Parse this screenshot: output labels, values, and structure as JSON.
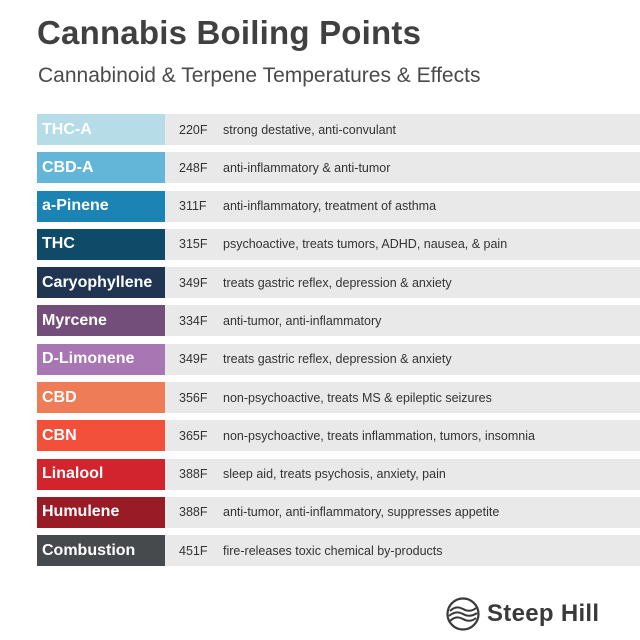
{
  "header": {
    "title": "Cannabis Boiling Points",
    "subtitle": "Cannabinoid & Terpene Temperatures & Effects"
  },
  "rows": [
    {
      "name": "THC-A",
      "temp": "220F",
      "effect": "strong destative, anti-convulant",
      "color": "#b5dce7"
    },
    {
      "name": "CBD-A",
      "temp": "248F",
      "effect": "anti-inflammatory & anti-tumor",
      "color": "#63b6d8"
    },
    {
      "name": "a-Pinene",
      "temp": "311F",
      "effect": "anti-inflammatory, treatment of asthma",
      "color": "#1b84b5"
    },
    {
      "name": "THC",
      "temp": "315F",
      "effect": "psychoactive, treats tumors, ADHD, nausea, & pain",
      "color": "#0f4a68"
    },
    {
      "name": "Caryophyllene",
      "temp": "349F",
      "effect": "treats gastric reflex, depression & anxiety",
      "color": "#1f3552"
    },
    {
      "name": "Myrcene",
      "temp": "334F",
      "effect": "anti-tumor, anti-inflammatory",
      "color": "#744e7b"
    },
    {
      "name": "D-Limonene",
      "temp": "349F",
      "effect": "treats gastric reflex, depression & anxiety",
      "color": "#a776b3"
    },
    {
      "name": "CBD",
      "temp": "356F",
      "effect": "non-psychoactive, treats MS & epileptic seizures",
      "color": "#ee7c56"
    },
    {
      "name": "CBN",
      "temp": "365F",
      "effect": "non-psychoactive, treats inflammation, tumors, insomnia",
      "color": "#f2503b"
    },
    {
      "name": "Linalool",
      "temp": "388F",
      "effect": "sleep aid, treats psychosis, anxiety, pain",
      "color": "#d1242d"
    },
    {
      "name": "Humulene",
      "temp": "388F",
      "effect": "anti-tumor, anti-inflammatory, suppresses appetite",
      "color": "#981b25"
    },
    {
      "name": "Combustion",
      "temp": "451F",
      "effect": "fire-releases toxic chemical by-products",
      "color": "#474a4c"
    }
  ],
  "logo": {
    "text": "Steep Hill",
    "icon": "steep-hill-logo-icon"
  }
}
